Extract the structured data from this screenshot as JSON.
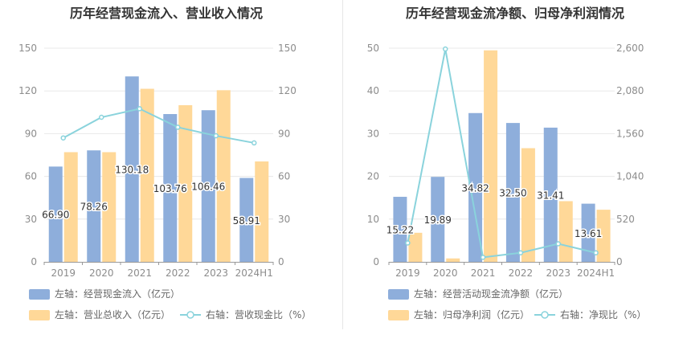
{
  "chart_data": [
    {
      "type": "bar+line",
      "title": "历年经营现金流入、营业收入情况",
      "categories": [
        "2019",
        "2020",
        "2021",
        "2022",
        "2023",
        "2024H1"
      ],
      "ylim_left": [
        0,
        150
      ],
      "yticks_left": [
        "0",
        "30",
        "60",
        "90",
        "120",
        "150"
      ],
      "ylim_right": [
        0,
        150
      ],
      "yticks_right": [
        "0",
        "30",
        "60",
        "90",
        "120",
        "150"
      ],
      "grid": true,
      "legend_position": "bottom-left",
      "series": [
        {
          "name": "左轴：经营现金流入（亿元）",
          "kind": "bar",
          "axis": "left",
          "color": "#8eaedb",
          "values": [
            66.9,
            78.26,
            130.18,
            103.76,
            106.46,
            58.91
          ],
          "data_labels": true
        },
        {
          "name": "左轴：营业总收入（亿元）",
          "kind": "bar",
          "axis": "left",
          "color": "#ffd898",
          "values": [
            77,
            77,
            121.5,
            110,
            120.5,
            70.5
          ],
          "data_labels": false
        },
        {
          "name": "右轴：营收现金比（%）",
          "kind": "line",
          "axis": "right",
          "color": "#8ad3dc",
          "values": [
            87,
            101.5,
            107.5,
            94.5,
            88.5,
            83.5
          ],
          "data_labels": false
        }
      ]
    },
    {
      "type": "bar+line",
      "title": "历年经营现金流净额、归母净利润情况",
      "categories": [
        "2019",
        "2020",
        "2021",
        "2022",
        "2023",
        "2024H1"
      ],
      "ylim_left": [
        0,
        50
      ],
      "yticks_left": [
        "0",
        "10",
        "20",
        "30",
        "40",
        "50"
      ],
      "ylim_right": [
        0,
        2600
      ],
      "yticks_right": [
        "0",
        "520",
        "1,040",
        "1,560",
        "2,080",
        "2,600"
      ],
      "grid": true,
      "legend_position": "bottom-left",
      "series": [
        {
          "name": "左轴：经营活动现金流净额（亿元）",
          "kind": "bar",
          "axis": "left",
          "color": "#8eaedb",
          "values": [
            15.22,
            19.89,
            34.82,
            32.5,
            31.41,
            13.61
          ],
          "data_labels": true
        },
        {
          "name": "左轴：归母净利润（亿元）",
          "kind": "bar",
          "axis": "left",
          "color": "#ffd898",
          "values": [
            6.8,
            0.8,
            49.5,
            26.6,
            14.2,
            12.2
          ],
          "data_labels": false
        },
        {
          "name": "右轴：净现比（%）",
          "kind": "line",
          "axis": "right",
          "color": "#8ad3dc",
          "values": [
            230,
            2590,
            55,
            110,
            220,
            110
          ],
          "data_labels": false
        }
      ]
    }
  ]
}
